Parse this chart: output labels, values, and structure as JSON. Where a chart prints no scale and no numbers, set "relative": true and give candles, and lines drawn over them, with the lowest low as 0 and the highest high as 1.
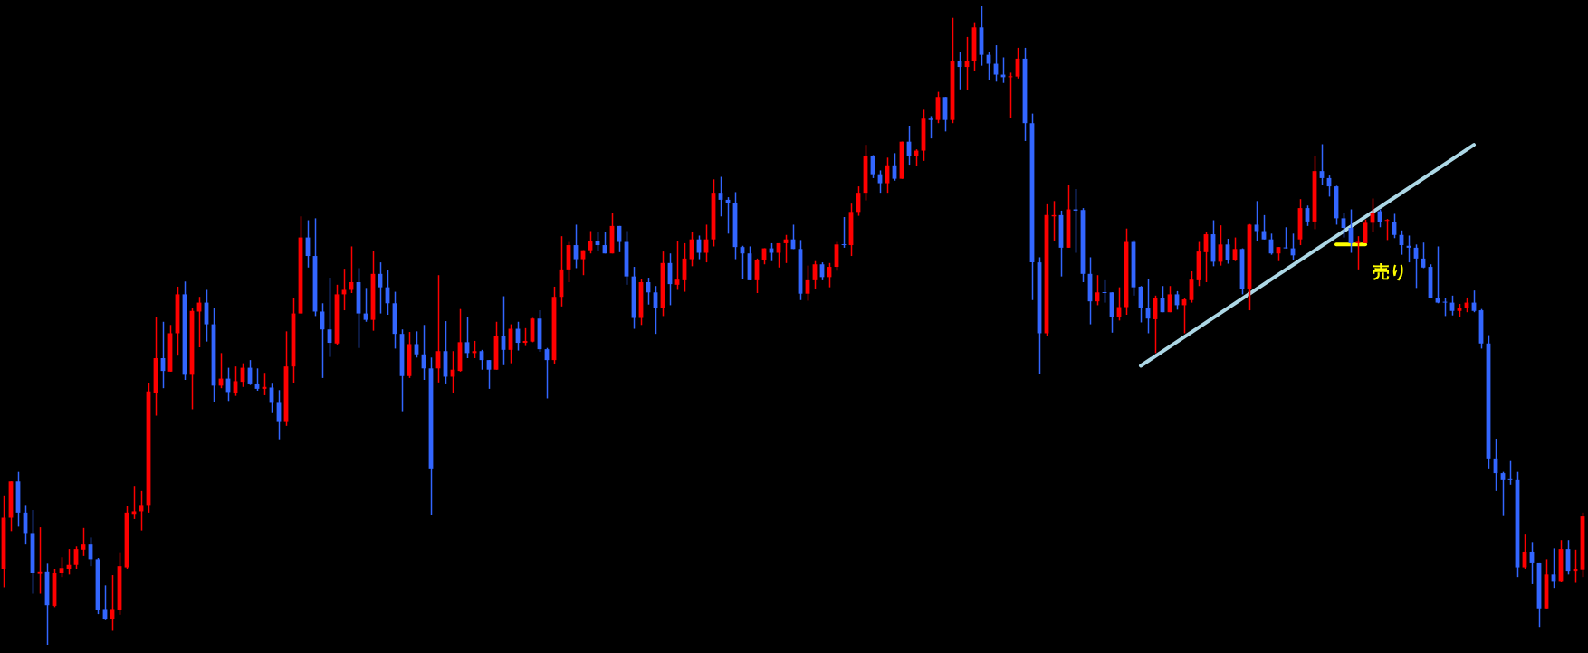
{
  "chart_data": {
    "type": "candlestick",
    "relative": true,
    "legend": false,
    "categories": [
      null,
      null,
      null,
      null,
      null,
      null,
      null,
      null,
      null,
      null,
      null,
      null,
      null,
      null,
      null,
      null,
      null,
      null,
      null,
      null,
      null,
      null,
      null,
      null,
      null,
      null,
      null,
      null,
      null,
      null,
      null,
      null,
      null,
      null,
      null,
      null,
      null,
      null,
      null,
      null,
      null,
      null,
      null,
      null,
      null,
      null,
      null,
      null,
      null,
      null,
      null,
      null,
      null,
      null,
      null,
      null,
      null,
      null,
      null,
      null,
      null,
      null,
      null,
      null,
      null,
      null,
      null,
      null,
      null,
      null,
      null,
      null,
      null,
      null,
      null,
      null,
      null,
      null,
      null,
      null,
      null,
      null,
      null,
      null,
      null,
      null,
      null,
      null,
      null,
      null,
      null,
      null,
      null,
      null,
      null,
      null,
      null,
      null,
      null,
      null,
      null,
      null,
      null,
      null,
      null,
      null,
      null,
      null,
      null,
      null,
      null,
      null,
      null,
      null,
      null,
      null,
      null,
      null,
      null,
      null,
      null,
      null,
      null,
      null,
      null,
      null,
      null,
      null,
      null,
      null,
      null,
      null,
      null,
      null,
      null,
      null,
      null,
      null,
      null,
      null,
      null,
      null,
      null,
      null,
      null,
      null,
      null,
      null,
      null,
      null,
      null,
      null,
      null,
      null,
      null,
      null,
      null,
      null,
      null,
      null,
      null,
      null,
      null,
      null,
      null,
      null,
      null,
      null,
      null,
      null,
      null,
      null,
      null,
      null,
      null,
      null,
      null,
      null,
      null,
      null,
      null,
      null,
      null,
      null,
      null,
      null,
      null,
      null,
      null,
      null,
      null,
      null,
      null,
      null,
      null,
      null,
      null,
      null,
      null,
      null,
      null,
      null,
      null,
      null,
      null,
      null,
      null,
      null,
      null,
      null,
      null,
      null,
      null,
      null,
      null,
      null,
      null,
      null,
      null
    ],
    "ohlc": [
      [
        0.119,
        0.234,
        0.09,
        0.199
      ],
      [
        0.199,
        0.256,
        0.178,
        0.256
      ],
      [
        0.256,
        0.271,
        0.185,
        0.207
      ],
      [
        0.207,
        0.219,
        0.157,
        0.175
      ],
      [
        0.175,
        0.211,
        0.08,
        0.112
      ],
      [
        0.111,
        0.184,
        0.08,
        0.115
      ],
      [
        0.115,
        0.127,
        0,
        0.062
      ],
      [
        0.061,
        0.119,
        0.059,
        0.113
      ],
      [
        0.112,
        0.137,
        0.106,
        0.12
      ],
      [
        0.119,
        0.15,
        0.11,
        0.125
      ],
      [
        0.125,
        0.154,
        0.119,
        0.15
      ],
      [
        0.149,
        0.183,
        0.139,
        0.157
      ],
      [
        0.157,
        0.168,
        0.123,
        0.134
      ],
      [
        0.134,
        0.136,
        0.048,
        0.055
      ],
      [
        0.056,
        0.093,
        0.04,
        0.041
      ],
      [
        0.041,
        0.109,
        0.022,
        0.056
      ],
      [
        0.055,
        0.145,
        0.047,
        0.123
      ],
      [
        0.121,
        0.217,
        0.119,
        0.207
      ],
      [
        0.205,
        0.249,
        0.197,
        0.209
      ],
      [
        0.209,
        0.241,
        0.179,
        0.219
      ],
      [
        0.219,
        0.41,
        0.207,
        0.397
      ],
      [
        0.395,
        0.514,
        0.359,
        0.449
      ],
      [
        0.449,
        0.506,
        0.402,
        0.429
      ],
      [
        0.428,
        0.501,
        0.428,
        0.488
      ],
      [
        0.488,
        0.561,
        0.453,
        0.549
      ],
      [
        0.549,
        0.569,
        0.415,
        0.423
      ],
      [
        0.423,
        0.527,
        0.369,
        0.523
      ],
      [
        0.522,
        0.545,
        0.466,
        0.536
      ],
      [
        0.536,
        0.556,
        0.475,
        0.502
      ],
      [
        0.502,
        0.528,
        0.38,
        0.406
      ],
      [
        0.406,
        0.457,
        0.402,
        0.417
      ],
      [
        0.417,
        0.434,
        0.382,
        0.396
      ],
      [
        0.395,
        0.436,
        0.39,
        0.413
      ],
      [
        0.412,
        0.441,
        0.404,
        0.434
      ],
      [
        0.434,
        0.446,
        0.407,
        0.408
      ],
      [
        0.408,
        0.433,
        0.398,
        0.401
      ],
      [
        0.401,
        0.426,
        0.391,
        0.404
      ],
      [
        0.403,
        0.409,
        0.363,
        0.379
      ],
      [
        0.379,
        0.399,
        0.322,
        0.349
      ],
      [
        0.349,
        0.491,
        0.343,
        0.436
      ],
      [
        0.436,
        0.543,
        0.41,
        0.519
      ],
      [
        0.519,
        0.671,
        0.519,
        0.638
      ],
      [
        0.638,
        0.665,
        0.591,
        0.609
      ],
      [
        0.609,
        0.668,
        0.515,
        0.522
      ],
      [
        0.522,
        0.535,
        0.418,
        0.494
      ],
      [
        0.494,
        0.575,
        0.451,
        0.473
      ],
      [
        0.472,
        0.564,
        0.47,
        0.549
      ],
      [
        0.549,
        0.589,
        0.524,
        0.556
      ],
      [
        0.556,
        0.624,
        0.551,
        0.568
      ],
      [
        0.568,
        0.59,
        0.465,
        0.519
      ],
      [
        0.519,
        0.559,
        0.506,
        0.509
      ],
      [
        0.509,
        0.617,
        0.492,
        0.581
      ],
      [
        0.581,
        0.599,
        0.519,
        0.56
      ],
      [
        0.56,
        0.587,
        0.517,
        0.535
      ],
      [
        0.535,
        0.553,
        0.464,
        0.487
      ],
      [
        0.487,
        0.494,
        0.366,
        0.421
      ],
      [
        0.421,
        0.49,
        0.418,
        0.471
      ],
      [
        0.471,
        0.491,
        0.45,
        0.455
      ],
      [
        0.455,
        0.501,
        0.415,
        0.433
      ],
      [
        0.433,
        0.45,
        0.204,
        0.275
      ],
      [
        0.433,
        0.579,
        0.411,
        0.46
      ],
      [
        0.46,
        0.507,
        0.408,
        0.42
      ],
      [
        0.42,
        0.46,
        0.395,
        0.431
      ],
      [
        0.429,
        0.526,
        0.428,
        0.474
      ],
      [
        0.474,
        0.514,
        0.449,
        0.457
      ],
      [
        0.457,
        0.476,
        0.449,
        0.46
      ],
      [
        0.46,
        0.462,
        0.431,
        0.446
      ],
      [
        0.446,
        0.446,
        0.401,
        0.431
      ],
      [
        0.431,
        0.506,
        0.431,
        0.484
      ],
      [
        0.484,
        0.546,
        0.438,
        0.462
      ],
      [
        0.462,
        0.502,
        0.441,
        0.495
      ],
      [
        0.495,
        0.506,
        0.461,
        0.473
      ],
      [
        0.473,
        0.496,
        0.468,
        0.476
      ],
      [
        0.475,
        0.512,
        0.474,
        0.511
      ],
      [
        0.511,
        0.524,
        0.459,
        0.463
      ],
      [
        0.463,
        0.465,
        0.386,
        0.446
      ],
      [
        0.446,
        0.561,
        0.44,
        0.545
      ],
      [
        0.545,
        0.64,
        0.53,
        0.588
      ],
      [
        0.588,
        0.631,
        0.568,
        0.626
      ],
      [
        0.626,
        0.658,
        0.59,
        0.604
      ],
      [
        0.604,
        0.618,
        0.579,
        0.618
      ],
      [
        0.618,
        0.648,
        0.613,
        0.633
      ],
      [
        0.633,
        0.646,
        0.616,
        0.626
      ],
      [
        0.626,
        0.647,
        0.613,
        0.613
      ],
      [
        0.613,
        0.677,
        0.613,
        0.656
      ],
      [
        0.656,
        0.656,
        0.615,
        0.631
      ],
      [
        0.631,
        0.648,
        0.564,
        0.577
      ],
      [
        0.577,
        0.592,
        0.495,
        0.512
      ],
      [
        0.512,
        0.573,
        0.501,
        0.568
      ],
      [
        0.568,
        0.575,
        0.533,
        0.552
      ],
      [
        0.552,
        0.562,
        0.487,
        0.528
      ],
      [
        0.528,
        0.616,
        0.515,
        0.598
      ],
      [
        0.598,
        0.613,
        0.532,
        0.565
      ],
      [
        0.564,
        0.632,
        0.556,
        0.572
      ],
      [
        0.571,
        0.629,
        0.553,
        0.605
      ],
      [
        0.604,
        0.647,
        0.593,
        0.635
      ],
      [
        0.635,
        0.641,
        0.604,
        0.614
      ],
      [
        0.614,
        0.658,
        0.599,
        0.635
      ],
      [
        0.635,
        0.729,
        0.624,
        0.708
      ],
      [
        0.708,
        0.733,
        0.671,
        0.697
      ],
      [
        0.697,
        0.701,
        0.644,
        0.692
      ],
      [
        0.692,
        0.709,
        0.604,
        0.623
      ],
      [
        0.623,
        0.625,
        0.573,
        0.613
      ],
      [
        0.613,
        0.624,
        0.571,
        0.571
      ],
      [
        0.571,
        0.605,
        0.551,
        0.603
      ],
      [
        0.603,
        0.621,
        0.596,
        0.621
      ],
      [
        0.621,
        0.629,
        0.601,
        0.614
      ],
      [
        0.614,
        0.629,
        0.591,
        0.629
      ],
      [
        0.629,
        0.642,
        0.598,
        0.635
      ],
      [
        0.635,
        0.658,
        0.62,
        0.62
      ],
      [
        0.62,
        0.634,
        0.54,
        0.55
      ],
      [
        0.55,
        0.594,
        0.539,
        0.571
      ],
      [
        0.571,
        0.601,
        0.558,
        0.596
      ],
      [
        0.596,
        0.599,
        0.571,
        0.576
      ],
      [
        0.576,
        0.598,
        0.56,
        0.592
      ],
      [
        0.592,
        0.631,
        0.586,
        0.627
      ],
      [
        0.627,
        0.67,
        0.622,
        0.626
      ],
      [
        0.626,
        0.691,
        0.609,
        0.678
      ],
      [
        0.678,
        0.718,
        0.672,
        0.708
      ],
      [
        0.708,
        0.783,
        0.696,
        0.766
      ],
      [
        0.766,
        0.767,
        0.731,
        0.737
      ],
      [
        0.737,
        0.743,
        0.708,
        0.723
      ],
      [
        0.723,
        0.763,
        0.708,
        0.751
      ],
      [
        0.751,
        0.77,
        0.727,
        0.73
      ],
      [
        0.73,
        0.788,
        0.73,
        0.788
      ],
      [
        0.788,
        0.813,
        0.752,
        0.765
      ],
      [
        0.765,
        0.776,
        0.75,
        0.774
      ],
      [
        0.774,
        0.838,
        0.758,
        0.824
      ],
      [
        0.824,
        0.828,
        0.793,
        0.822
      ],
      [
        0.822,
        0.866,
        0.817,
        0.858
      ],
      [
        0.858,
        0.858,
        0.804,
        0.822
      ],
      [
        0.822,
        0.982,
        0.817,
        0.915
      ],
      [
        0.915,
        0.929,
        0.87,
        0.905
      ],
      [
        0.905,
        0.952,
        0.869,
        0.915
      ],
      [
        0.915,
        0.975,
        0.899,
        0.967
      ],
      [
        0.967,
        1.0,
        0.907,
        0.924
      ],
      [
        0.924,
        0.928,
        0.885,
        0.91
      ],
      [
        0.91,
        0.939,
        0.882,
        0.893
      ],
      [
        0.893,
        0.92,
        0.88,
        0.889
      ],
      [
        0.889,
        0.896,
        0.825,
        0.89
      ],
      [
        0.89,
        0.935,
        0.887,
        0.918
      ],
      [
        0.918,
        0.935,
        0.789,
        0.817
      ],
      [
        0.817,
        0.832,
        0.54,
        0.599
      ],
      [
        0.599,
        0.607,
        0.424,
        0.488
      ],
      [
        0.488,
        0.69,
        0.484,
        0.673
      ],
      [
        0.671,
        0.695,
        0.632,
        0.673
      ],
      [
        0.673,
        0.68,
        0.577,
        0.622
      ],
      [
        0.622,
        0.721,
        0.622,
        0.682
      ],
      [
        0.682,
        0.714,
        0.614,
        0.68
      ],
      [
        0.681,
        0.684,
        0.568,
        0.581
      ],
      [
        0.581,
        0.607,
        0.502,
        0.538
      ],
      [
        0.538,
        0.579,
        0.532,
        0.552
      ],
      [
        0.552,
        0.571,
        0.536,
        0.551
      ],
      [
        0.552,
        0.552,
        0.489,
        0.513
      ],
      [
        0.513,
        0.56,
        0.508,
        0.529
      ],
      [
        0.529,
        0.652,
        0.517,
        0.631
      ],
      [
        0.631,
        0.634,
        0.547,
        0.56
      ],
      [
        0.561,
        0.562,
        0.505,
        0.528
      ],
      [
        0.528,
        0.573,
        0.488,
        0.511
      ],
      [
        0.51,
        0.547,
        0.457,
        0.543
      ],
      [
        0.543,
        0.562,
        0.521,
        0.521
      ],
      [
        0.521,
        0.562,
        0.521,
        0.549
      ],
      [
        0.549,
        0.554,
        0.525,
        0.532
      ],
      [
        0.532,
        0.543,
        0.488,
        0.541
      ],
      [
        0.54,
        0.585,
        0.536,
        0.572
      ],
      [
        0.571,
        0.631,
        0.562,
        0.616
      ],
      [
        0.615,
        0.646,
        0.568,
        0.643
      ],
      [
        0.643,
        0.665,
        0.593,
        0.6
      ],
      [
        0.6,
        0.657,
        0.594,
        0.627
      ],
      [
        0.627,
        0.636,
        0.597,
        0.603
      ],
      [
        0.602,
        0.638,
        0.601,
        0.62
      ],
      [
        0.62,
        0.621,
        0.549,
        0.558
      ],
      [
        0.558,
        0.659,
        0.524,
        0.658
      ],
      [
        0.658,
        0.695,
        0.633,
        0.648
      ],
      [
        0.648,
        0.673,
        0.635,
        0.635
      ],
      [
        0.635,
        0.644,
        0.611,
        0.613
      ],
      [
        0.613,
        0.623,
        0.601,
        0.623
      ],
      [
        0.622,
        0.654,
        0.621,
        0.621
      ],
      [
        0.621,
        0.644,
        0.602,
        0.61
      ],
      [
        0.635,
        0.698,
        0.626,
        0.684
      ],
      [
        0.684,
        0.688,
        0.656,
        0.663
      ],
      [
        0.663,
        0.766,
        0.651,
        0.742
      ],
      [
        0.742,
        0.784,
        0.72,
        0.731
      ],
      [
        0.731,
        0.735,
        0.702,
        0.718
      ],
      [
        0.718,
        0.719,
        0.658,
        0.668
      ],
      [
        0.668,
        0.677,
        0.638,
        0.653
      ],
      [
        0.653,
        0.682,
        0.614,
        0.629
      ],
      [
        0.629,
        0.64,
        0.588,
        0.631
      ],
      [
        0.629,
        0.666,
        0.629,
        0.661
      ],
      [
        0.661,
        0.699,
        0.646,
        0.677
      ],
      [
        0.679,
        0.682,
        0.654,
        0.662
      ],
      [
        0.664,
        0.667,
        0.634,
        0.665
      ],
      [
        0.662,
        0.675,
        0.637,
        0.642
      ],
      [
        0.642,
        0.649,
        0.611,
        0.626
      ],
      [
        0.625,
        0.641,
        0.599,
        0.622
      ],
      [
        0.622,
        0.627,
        0.559,
        0.605
      ],
      [
        0.605,
        0.63,
        0.59,
        0.591
      ],
      [
        0.592,
        0.596,
        0.543,
        0.543
      ],
      [
        0.543,
        0.624,
        0.535,
        0.536
      ],
      [
        0.537,
        0.543,
        0.515,
        0.536
      ],
      [
        0.536,
        0.547,
        0.516,
        0.523
      ],
      [
        0.523,
        0.534,
        0.514,
        0.528
      ],
      [
        0.527,
        0.544,
        0.521,
        0.536
      ],
      [
        0.536,
        0.555,
        0.521,
        0.523
      ],
      [
        0.524,
        0.526,
        0.464,
        0.472
      ],
      [
        0.472,
        0.485,
        0.275,
        0.292
      ],
      [
        0.292,
        0.323,
        0.241,
        0.269
      ],
      [
        0.269,
        0.271,
        0.203,
        0.258
      ],
      [
        0.259,
        0.288,
        0.251,
        0.258
      ],
      [
        0.258,
        0.271,
        0.106,
        0.121
      ],
      [
        0.121,
        0.174,
        0.119,
        0.146
      ],
      [
        0.146,
        0.161,
        0.095,
        0.129
      ],
      [
        0.129,
        0.129,
        0.028,
        0.057
      ],
      [
        0.057,
        0.134,
        0.057,
        0.11
      ],
      [
        0.11,
        0.151,
        0.089,
        0.1
      ],
      [
        0.1,
        0.164,
        0.098,
        0.15
      ],
      [
        0.15,
        0.164,
        0.11,
        0.116
      ],
      [
        0.116,
        0.149,
        0.097,
        0.119
      ],
      [
        0.118,
        0.207,
        0.106,
        0.201
      ]
    ],
    "colors": [
      "#ff0000",
      "#ff0000",
      "#3366ff",
      "#3366ff",
      "#3366ff",
      "#ff0000",
      "#3366ff",
      "#ff0000",
      "#ff0000",
      "#ff0000",
      "#ff0000",
      "#ff0000",
      "#3366ff",
      "#3366ff",
      "#3366ff",
      "#ff0000",
      "#ff0000",
      "#ff0000",
      "#ff0000",
      "#ff0000",
      "#ff0000",
      "#ff0000",
      "#3366ff",
      "#ff0000",
      "#ff0000",
      "#3366ff",
      "#ff0000",
      "#ff0000",
      "#3366ff",
      "#3366ff",
      "#ff0000",
      "#3366ff",
      "#ff0000",
      "#ff0000",
      "#3366ff",
      "#3366ff",
      "#ff0000",
      "#3366ff",
      "#3366ff",
      "#ff0000",
      "#ff0000",
      "#ff0000",
      "#3366ff",
      "#3366ff",
      "#3366ff",
      "#3366ff",
      "#ff0000",
      "#ff0000",
      "#ff0000",
      "#3366ff",
      "#3366ff",
      "#ff0000",
      "#3366ff",
      "#3366ff",
      "#3366ff",
      "#3366ff",
      "#ff0000",
      "#3366ff",
      "#3366ff",
      "#3366ff",
      "#ff0000",
      "#3366ff",
      "#ff0000",
      "#ff0000",
      "#3366ff",
      "#ff0000",
      "#3366ff",
      "#3366ff",
      "#ff0000",
      "#3366ff",
      "#ff0000",
      "#3366ff",
      "#ff0000",
      "#ff0000",
      "#3366ff",
      "#3366ff",
      "#ff0000",
      "#ff0000",
      "#ff0000",
      "#3366ff",
      "#ff0000",
      "#ff0000",
      "#3366ff",
      "#3366ff",
      "#ff0000",
      "#3366ff",
      "#3366ff",
      "#3366ff",
      "#ff0000",
      "#3366ff",
      "#3366ff",
      "#ff0000",
      "#3366ff",
      "#ff0000",
      "#ff0000",
      "#ff0000",
      "#3366ff",
      "#ff0000",
      "#ff0000",
      "#3366ff",
      "#3366ff",
      "#3366ff",
      "#3366ff",
      "#3366ff",
      "#ff0000",
      "#ff0000",
      "#3366ff",
      "#ff0000",
      "#ff0000",
      "#3366ff",
      "#3366ff",
      "#ff0000",
      "#ff0000",
      "#3366ff",
      "#ff0000",
      "#ff0000",
      "#3366ff",
      "#ff0000",
      "#ff0000",
      "#ff0000",
      "#3366ff",
      "#3366ff",
      "#ff0000",
      "#3366ff",
      "#ff0000",
      "#3366ff",
      "#ff0000",
      "#ff0000",
      "#3366ff",
      "#ff0000",
      "#3366ff",
      "#ff0000",
      "#3366ff",
      "#ff0000",
      "#ff0000",
      "#3366ff",
      "#3366ff",
      "#3366ff",
      "#3366ff",
      "#ff0000",
      "#ff0000",
      "#3366ff",
      "#3366ff",
      "#3366ff",
      "#ff0000",
      "#ff0000",
      "#3366ff",
      "#ff0000",
      "#3366ff",
      "#3366ff",
      "#3366ff",
      "#ff0000",
      "#3366ff",
      "#3366ff",
      "#ff0000",
      "#ff0000",
      "#3366ff",
      "#3366ff",
      "#3366ff",
      "#ff0000",
      "#3366ff",
      "#ff0000",
      "#3366ff",
      "#ff0000",
      "#ff0000",
      "#ff0000",
      "#ff0000",
      "#3366ff",
      "#ff0000",
      "#3366ff",
      "#ff0000",
      "#3366ff",
      "#ff0000",
      "#3366ff",
      "#3366ff",
      "#3366ff",
      "#ff0000",
      "#3366ff",
      "#3366ff",
      "#ff0000",
      "#3366ff",
      "#ff0000",
      "#3366ff",
      "#3366ff",
      "#3366ff",
      "#3366ff",
      "#3366ff",
      "#ff0000",
      "#ff0000",
      "#ff0000",
      "#3366ff",
      "#ff0000",
      "#3366ff",
      "#3366ff",
      "#3366ff",
      "#3366ff",
      "#3366ff",
      "#3366ff",
      "#3366ff",
      "#3366ff",
      "#3366ff",
      "#ff0000",
      "#ff0000",
      "#3366ff",
      "#3366ff",
      "#3366ff",
      "#3366ff",
      "#3366ff",
      "#3366ff",
      "#3366ff",
      "#ff0000",
      "#3366ff",
      "#3366ff",
      "#ff0000",
      "#3366ff",
      "#ff0000",
      "#3366ff",
      "#ff0000",
      "#ff0000"
    ],
    "series": [
      {
        "type": "line",
        "color": "#add8e6",
        "values": [
          null,
          null,
          null,
          null,
          null,
          null,
          null,
          null,
          null,
          null,
          null,
          null,
          null,
          null,
          null,
          null,
          null,
          null,
          null,
          null,
          null,
          null,
          null,
          null,
          null,
          null,
          null,
          null,
          null,
          null,
          null,
          null,
          null,
          null,
          null,
          null,
          null,
          null,
          null,
          null,
          null,
          null,
          null,
          null,
          null,
          null,
          null,
          null,
          null,
          null,
          null,
          null,
          null,
          null,
          null,
          null,
          null,
          null,
          null,
          null,
          null,
          null,
          null,
          null,
          null,
          null,
          null,
          null,
          null,
          null,
          null,
          null,
          null,
          null,
          null,
          null,
          null,
          null,
          null,
          null,
          null,
          null,
          null,
          null,
          null,
          null,
          null,
          null,
          null,
          null,
          null,
          null,
          null,
          null,
          null,
          null,
          null,
          null,
          null,
          null,
          null,
          null,
          null,
          null,
          null,
          null,
          null,
          null,
          null,
          null,
          null,
          null,
          null,
          null,
          null,
          null,
          null,
          null,
          null,
          null,
          null,
          null,
          null,
          null,
          null,
          null,
          null,
          null,
          null,
          null,
          null,
          null,
          null,
          null,
          null,
          null,
          null,
          null,
          null,
          null,
          null,
          null,
          null,
          null,
          null,
          null,
          null,
          null,
          null,
          null,
          null,
          null,
          null,
          null,
          null,
          null,
          null,
          0.437,
          null,
          null,
          null,
          null,
          null,
          null,
          null,
          null,
          null,
          null,
          null,
          null,
          null,
          null,
          null,
          null,
          null,
          null,
          null,
          null,
          null,
          null,
          null,
          null,
          null,
          null,
          null,
          null,
          null,
          null,
          null,
          null,
          null,
          null,
          null,
          null,
          null,
          null,
          null,
          null,
          null,
          null,
          null,
          null,
          null,
          0.783,
          null,
          null,
          null,
          null,
          null,
          null,
          null,
          null,
          null,
          null,
          null,
          null,
          null,
          null,
          null
        ]
      },
      {
        "type": "line",
        "name": "売り",
        "color": "#ffff00",
        "values": [
          null,
          null,
          null,
          null,
          null,
          null,
          null,
          null,
          null,
          null,
          null,
          null,
          null,
          null,
          null,
          null,
          null,
          null,
          null,
          null,
          null,
          null,
          null,
          null,
          null,
          null,
          null,
          null,
          null,
          null,
          null,
          null,
          null,
          null,
          null,
          null,
          null,
          null,
          null,
          null,
          null,
          null,
          null,
          null,
          null,
          null,
          null,
          null,
          null,
          null,
          null,
          null,
          null,
          null,
          null,
          null,
          null,
          null,
          null,
          null,
          null,
          null,
          null,
          null,
          null,
          null,
          null,
          null,
          null,
          null,
          null,
          null,
          null,
          null,
          null,
          null,
          null,
          null,
          null,
          null,
          null,
          null,
          null,
          null,
          null,
          null,
          null,
          null,
          null,
          null,
          null,
          null,
          null,
          null,
          null,
          null,
          null,
          null,
          null,
          null,
          null,
          null,
          null,
          null,
          null,
          null,
          null,
          null,
          null,
          null,
          null,
          null,
          null,
          null,
          null,
          null,
          null,
          null,
          null,
          null,
          null,
          null,
          null,
          null,
          null,
          null,
          null,
          null,
          null,
          null,
          null,
          null,
          null,
          null,
          null,
          null,
          null,
          null,
          null,
          null,
          null,
          null,
          null,
          null,
          null,
          null,
          null,
          null,
          null,
          null,
          null,
          null,
          null,
          null,
          null,
          null,
          null,
          null,
          null,
          null,
          null,
          null,
          null,
          null,
          null,
          null,
          null,
          null,
          null,
          null,
          null,
          null,
          null,
          null,
          null,
          null,
          null,
          null,
          null,
          null,
          null,
          null,
          null,
          null,
          0.627,
          null,
          null,
          null,
          0.627,
          null,
          null,
          null,
          null,
          null,
          null,
          null,
          null,
          null,
          null,
          null,
          null,
          null,
          null,
          null,
          null,
          null,
          null,
          null,
          null,
          null,
          null,
          null,
          null,
          null,
          null,
          null,
          null,
          null,
          null
        ]
      }
    ]
  }
}
